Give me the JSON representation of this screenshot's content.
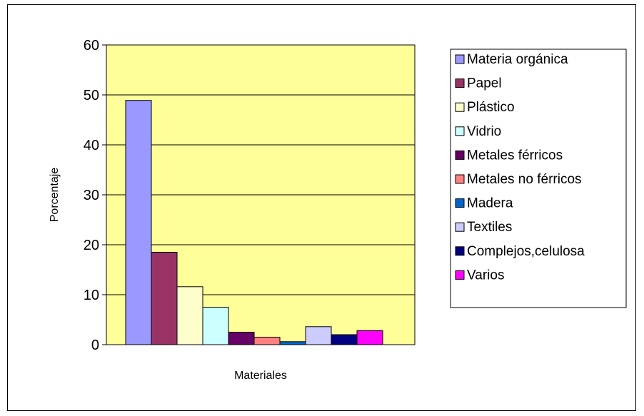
{
  "chart_data": {
    "type": "bar",
    "title": "",
    "xlabel": "Materiales",
    "ylabel": "Porcentaje",
    "ylim": [
      0,
      60
    ],
    "yticks": [
      0,
      10,
      20,
      30,
      40,
      50,
      60
    ],
    "grid": true,
    "legend_position": "right",
    "plot_background": "#ffff99",
    "categories": [
      "Materia orgánica",
      "Papel",
      "Plástico",
      "Vidrio",
      "Metales férricos",
      "Metales no férricos",
      "Madera",
      "Textiles",
      "Complejos,celulosa",
      "Varios"
    ],
    "values": [
      48.9,
      18.5,
      11.6,
      7.5,
      2.5,
      1.5,
      0.6,
      3.6,
      2.0,
      2.8
    ],
    "colors": [
      "#9999ff",
      "#993366",
      "#ffffcc",
      "#ccffff",
      "#660066",
      "#ff8080",
      "#0066cc",
      "#ccccff",
      "#000080",
      "#ff00ff"
    ]
  }
}
